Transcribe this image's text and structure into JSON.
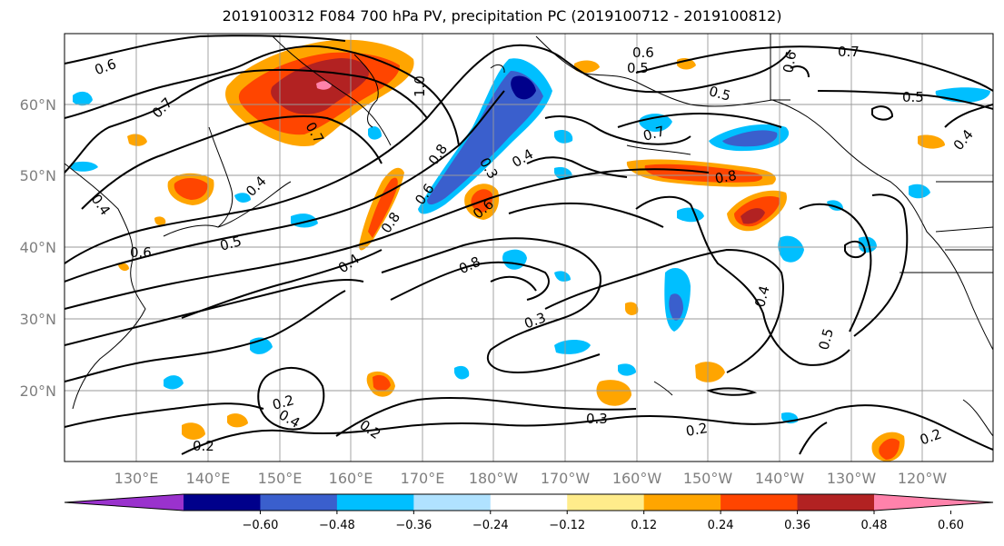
{
  "title": "2019100312 F084 700 hPa PV, precipitation PC (2019100712 - 2019100812)",
  "lat_labels": [
    "60°N",
    "50°N",
    "40°N",
    "30°N",
    "20°N"
  ],
  "lon_labels": [
    "130°E",
    "140°E",
    "150°E",
    "160°E",
    "170°E",
    "180°W",
    "170°W",
    "160°W",
    "150°W",
    "140°W",
    "130°W",
    "120°W"
  ],
  "colorbar": {
    "ticks": [
      "−0.60",
      "−0.48",
      "−0.36",
      "−0.24",
      "−0.12",
      "0.12",
      "0.24",
      "0.36",
      "0.48",
      "0.60"
    ],
    "colors": [
      "#9a32cd",
      "#00008b",
      "#3a5fcd",
      "#00bfff",
      "#b0e2ff",
      "#ffffff",
      "#ffec8b",
      "#ffa500",
      "#ff4500",
      "#b22222",
      "#ff82ab"
    ]
  },
  "contour_labels": [
    {
      "text": "0.6"
    },
    {
      "text": "0.7"
    },
    {
      "text": "1.0"
    },
    {
      "text": "0.7"
    },
    {
      "text": "0.6"
    },
    {
      "text": "0.5"
    },
    {
      "text": "0.5"
    },
    {
      "text": "0.7"
    },
    {
      "text": "0.6"
    },
    {
      "text": "0.5"
    },
    {
      "text": "0.4"
    },
    {
      "text": "0.4"
    },
    {
      "text": "0.6"
    },
    {
      "text": "0.5"
    },
    {
      "text": "0.4"
    },
    {
      "text": "0.8"
    },
    {
      "text": "0.6"
    },
    {
      "text": "0.3"
    },
    {
      "text": "0.4"
    },
    {
      "text": "0.8"
    },
    {
      "text": "0.7"
    },
    {
      "text": "0.8"
    },
    {
      "text": "0.6"
    },
    {
      "text": "0.8"
    },
    {
      "text": "0.3"
    },
    {
      "text": "0.4"
    },
    {
      "text": "0.5"
    },
    {
      "text": "0.3"
    },
    {
      "text": "0.2"
    },
    {
      "text": "0.2"
    },
    {
      "text": "0.2"
    },
    {
      "text": "0.4"
    },
    {
      "text": "0.2"
    },
    {
      "text": "0.2"
    },
    {
      "text": "0.4"
    }
  ]
}
